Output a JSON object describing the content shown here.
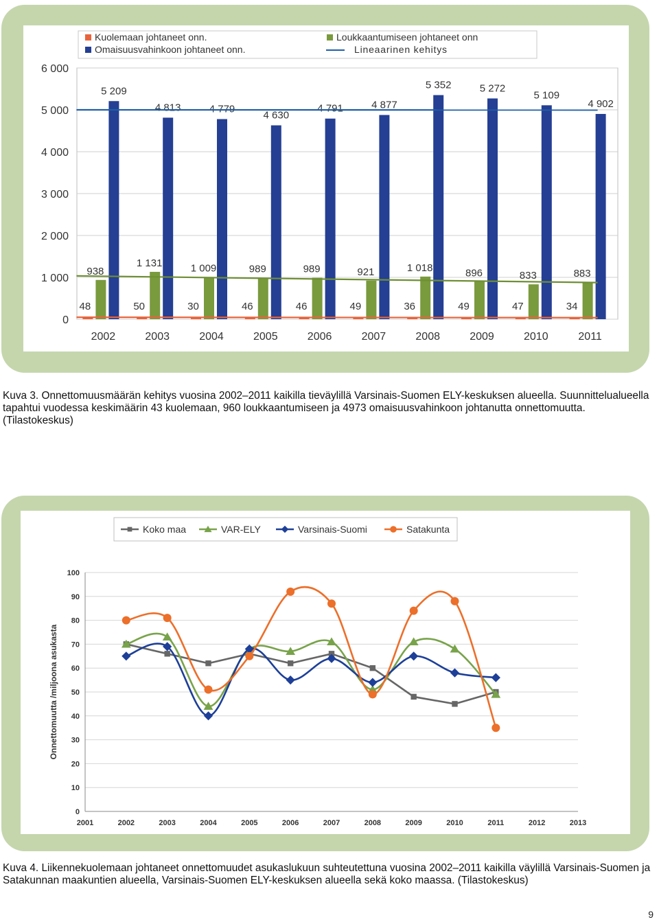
{
  "chart_data": [
    {
      "type": "bar",
      "categories": [
        "2002",
        "2003",
        "2004",
        "2005",
        "2006",
        "2007",
        "2008",
        "2009",
        "2010",
        "2011"
      ],
      "series": [
        {
          "name": "Kuolemaan johtaneet onn.",
          "values": [
            48,
            50,
            30,
            46,
            46,
            49,
            36,
            49,
            47,
            34
          ],
          "color": "#e8643c",
          "labels": [
            "48",
            "50",
            "30",
            "46",
            "46",
            "49",
            "36",
            "49",
            "47",
            "34"
          ]
        },
        {
          "name": "Loukkaantumiseen johtaneet onn",
          "values": [
            938,
            1131,
            1009,
            989,
            989,
            921,
            1018,
            896,
            833,
            883
          ],
          "color": "#7a9a3e",
          "labels": [
            "938",
            "1 131",
            "1 009",
            "989",
            "989",
            "921",
            "1 018",
            "896",
            "833",
            "883"
          ]
        },
        {
          "name": "Omaisuusvahinkoon johtaneet onn.",
          "values": [
            5209,
            4813,
            4779,
            4630,
            4791,
            4877,
            5352,
            5272,
            5109,
            4902
          ],
          "color": "#243f93",
          "labels": [
            "5 209",
            "4 813",
            "4 779",
            "4 630",
            "4 791",
            "4 877",
            "5 352",
            "5 272",
            "5 109",
            "4 902"
          ]
        }
      ],
      "trend_lines": [
        {
          "name": "Lineaarinen kehitys",
          "of": "Omaisuusvahinkoon johtaneet onn.",
          "start": 5000,
          "end": 4996,
          "color": "#1f5fa8"
        },
        {
          "of": "Loukkaantumiseen johtaneet onn",
          "start": 1035,
          "end": 875,
          "color": "#6f8f34"
        },
        {
          "of": "Kuolemaan johtaneet onn.",
          "start": 47,
          "end": 37,
          "color": "#e8643c"
        }
      ],
      "ylim": [
        0,
        6000
      ],
      "yticks": [
        0,
        1000,
        2000,
        3000,
        4000,
        5000,
        6000
      ],
      "ytick_labels": [
        "0",
        "1 000",
        "2 000",
        "3 000",
        "4 000",
        "5 000",
        "6 000"
      ],
      "grid": true,
      "legend_position": "top",
      "legend": [
        {
          "label": "Kuolemaan johtaneet onn.",
          "marker": "square",
          "color": "#e8643c"
        },
        {
          "label": "Loukkaantumiseen johtaneet onn",
          "marker": "square",
          "color": "#7a9a3e"
        },
        {
          "label": "Omaisuusvahinkoon johtaneet onn.",
          "marker": "square",
          "color": "#243f93"
        },
        {
          "label": "Lineaarinen kehitys",
          "marker": "line",
          "color": "#1f5fa8"
        }
      ]
    },
    {
      "type": "line",
      "x": [
        2001,
        2002,
        2003,
        2004,
        2005,
        2006,
        2007,
        2008,
        2009,
        2010,
        2011,
        2012,
        2013
      ],
      "xtick_labels": [
        "2001",
        "2002",
        "2003",
        "2004",
        "2005",
        "2006",
        "2007",
        "2008",
        "2009",
        "2010",
        "2011",
        "2012",
        "2013"
      ],
      "ylabel": "Onnettomuutta /miljoona asukasta",
      "ylim": [
        0,
        100
      ],
      "yticks": [
        0,
        10,
        20,
        30,
        40,
        50,
        60,
        70,
        80,
        90,
        100
      ],
      "grid": true,
      "legend_position": "top",
      "series": [
        {
          "name": "Koko maa",
          "color": "#666666",
          "marker": "square",
          "x": [
            2002,
            2003,
            2004,
            2005,
            2006,
            2007,
            2008,
            2009,
            2010,
            2011
          ],
          "values": [
            70,
            66,
            62,
            66,
            62,
            66,
            60,
            48,
            45,
            50
          ]
        },
        {
          "name": "VAR-ELY",
          "color": "#78a34a",
          "marker": "triangle",
          "x": [
            2002,
            2003,
            2004,
            2005,
            2006,
            2007,
            2008,
            2009,
            2010,
            2011
          ],
          "values": [
            70,
            73,
            44,
            68,
            67,
            71,
            51,
            71,
            68,
            49
          ]
        },
        {
          "name": "Varsinais-Suomi",
          "color": "#1d3f98",
          "marker": "diamond",
          "x": [
            2002,
            2003,
            2004,
            2005,
            2006,
            2007,
            2008,
            2009,
            2010,
            2011
          ],
          "values": [
            65,
            69,
            40,
            68,
            55,
            64,
            54,
            65,
            58,
            56
          ]
        },
        {
          "name": "Satakunta",
          "color": "#ec6f2a",
          "marker": "circle",
          "x": [
            2002,
            2003,
            2004,
            2005,
            2006,
            2007,
            2008,
            2009,
            2010,
            2011
          ],
          "values": [
            80,
            81,
            51,
            65,
            92,
            87,
            49,
            84,
            88,
            35
          ]
        }
      ]
    }
  ],
  "captions": {
    "kuva3": "Kuva 3.   Onnettomuusmäärän kehitys vuosina 2002–2011 kaikilla tieväylillä Varsinais-Suomen ELY-keskuksen alueella. Suunnittelualueella tapahtui vuodessa keskimäärin 43 kuolemaan, 960 loukkaantumiseen ja 4973 omaisuusvahinkoon johtanutta onnettomuutta. (Tilastokeskus)",
    "kuva4": "Kuva 4.   Liikennekuolemaan johtaneet onnettomuudet asukaslukuun suhteutettuna vuosina 2002–2011 kaikilla väylillä Varsinais-Suomen ja Satakunnan maakuntien alueella, Varsinais-Suomen ELY-keskuksen alueella sekä koko maassa. (Tilastokeskus)"
  },
  "page_number": "9",
  "colors": {
    "frame": "#c5d6ad",
    "grid": "#d0d0d0"
  }
}
